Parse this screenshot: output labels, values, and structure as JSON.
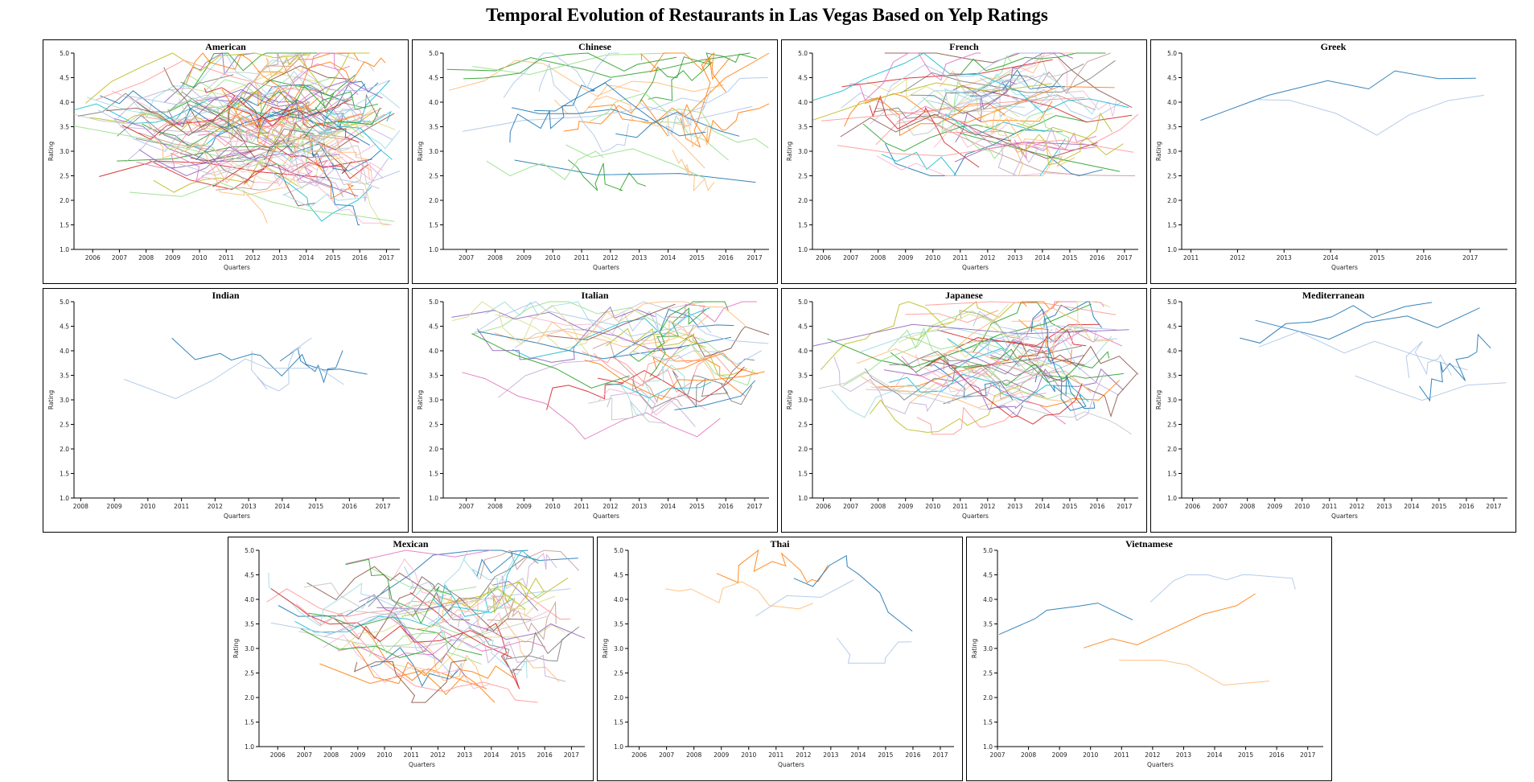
{
  "title": "Temporal Evolution of Restaurants in Las Vegas Based on Yelp Ratings",
  "palette": [
    "#1f77b4",
    "#aec7e8",
    "#ff7f0e",
    "#ffbb78",
    "#2ca02c",
    "#98df8a",
    "#d62728",
    "#ff9896",
    "#9467bd",
    "#c5b0d5",
    "#8c564b",
    "#c49c94",
    "#e377c2",
    "#f7b6d2",
    "#7f7f7f",
    "#c7c7c7",
    "#bcbd22",
    "#dbdb8d",
    "#17becf",
    "#9edae5"
  ],
  "chart_data": [
    {
      "type": "line",
      "title": "American",
      "xlabel": "Quarters",
      "ylabel": "Rating",
      "xlim": [
        2005.3,
        2017.5
      ],
      "ylim": [
        1.0,
        5.0
      ],
      "xticks": [
        "2006",
        "2007",
        "2008",
        "2009",
        "2010",
        "2011",
        "2012",
        "2013",
        "2014",
        "2015",
        "2016",
        "2017"
      ],
      "yticks": [
        "1.0",
        "1.5",
        "2.0",
        "2.5",
        "3.0",
        "3.5",
        "4.0",
        "4.5",
        "5.0"
      ],
      "n_series": 130,
      "y_range_of_series": [
        1.5,
        5.0
      ],
      "colors": "category20"
    },
    {
      "type": "line",
      "title": "Chinese",
      "xlabel": "Quarters",
      "ylabel": "Rating",
      "xlim": [
        2006.2,
        2017.5
      ],
      "ylim": [
        1.0,
        5.0
      ],
      "xticks": [
        "2007",
        "2008",
        "2009",
        "2010",
        "2011",
        "2012",
        "2013",
        "2014",
        "2015",
        "2016",
        "2017"
      ],
      "yticks": [
        "1.0",
        "1.5",
        "2.0",
        "2.5",
        "3.0",
        "3.5",
        "4.0",
        "4.5",
        "5.0"
      ],
      "n_series": 30,
      "y_range_of_series": [
        2.2,
        5.0
      ],
      "colors": [
        "#ffbb78",
        "#ff7f0e",
        "#2ca02c",
        "#aec7e8",
        "#1f77b4",
        "#98df8a"
      ]
    },
    {
      "type": "line",
      "title": "French",
      "xlabel": "Quarters",
      "ylabel": "Rating",
      "xlim": [
        2005.6,
        2017.5
      ],
      "ylim": [
        1.0,
        5.0
      ],
      "xticks": [
        "2006",
        "2007",
        "2008",
        "2009",
        "2010",
        "2011",
        "2012",
        "2013",
        "2014",
        "2015",
        "2016",
        "2017"
      ],
      "yticks": [
        "1.0",
        "1.5",
        "2.0",
        "2.5",
        "3.0",
        "3.5",
        "4.0",
        "4.5",
        "5.0"
      ],
      "n_series": 60,
      "y_range_of_series": [
        2.5,
        5.0
      ],
      "colors": "category20"
    },
    {
      "type": "line",
      "title": "Greek",
      "xlabel": "Quarters",
      "ylabel": "Rating",
      "xlim": [
        2010.8,
        2017.8
      ],
      "ylim": [
        1.0,
        5.0
      ],
      "xticks": [
        "2011",
        "2012",
        "2013",
        "2014",
        "2015",
        "2016",
        "2017"
      ],
      "yticks": [
        "1.0",
        "1.5",
        "2.0",
        "2.5",
        "3.0",
        "3.5",
        "4.0",
        "4.5",
        "5.0"
      ],
      "n_series": 2,
      "y_range_of_series": [
        2.7,
        4.9
      ],
      "colors": [
        "#1f77b4",
        "#aec7e8"
      ]
    },
    {
      "type": "line",
      "title": "Indian",
      "xlabel": "Quarters",
      "ylabel": "Rating",
      "xlim": [
        2007.8,
        2017.5
      ],
      "ylim": [
        1.0,
        5.0
      ],
      "xticks": [
        "2008",
        "2009",
        "2010",
        "2011",
        "2012",
        "2013",
        "2014",
        "2015",
        "2016",
        "2017"
      ],
      "yticks": [
        "1.0",
        "1.5",
        "2.0",
        "2.5",
        "3.0",
        "3.5",
        "4.0",
        "4.5",
        "5.0"
      ],
      "n_series": 4,
      "y_range_of_series": [
        3.0,
        5.0
      ],
      "colors": [
        "#1f77b4",
        "#aec7e8"
      ]
    },
    {
      "type": "line",
      "title": "Italian",
      "xlabel": "Quarters",
      "ylabel": "Rating",
      "xlim": [
        2006.2,
        2017.5
      ],
      "ylim": [
        1.0,
        5.0
      ],
      "xticks": [
        "2007",
        "2008",
        "2009",
        "2010",
        "2011",
        "2012",
        "2013",
        "2014",
        "2015",
        "2016",
        "2017"
      ],
      "yticks": [
        "1.0",
        "1.5",
        "2.0",
        "2.5",
        "3.0",
        "3.5",
        "4.0",
        "4.5",
        "5.0"
      ],
      "n_series": 45,
      "y_range_of_series": [
        2.2,
        5.0
      ],
      "colors": "category20"
    },
    {
      "type": "line",
      "title": "Japanese",
      "xlabel": "Quarters",
      "ylabel": "Rating",
      "xlim": [
        2005.6,
        2017.5
      ],
      "ylim": [
        1.0,
        5.0
      ],
      "xticks": [
        "2006",
        "2007",
        "2008",
        "2009",
        "2010",
        "2011",
        "2012",
        "2013",
        "2014",
        "2015",
        "2016",
        "2017"
      ],
      "yticks": [
        "1.0",
        "1.5",
        "2.0",
        "2.5",
        "3.0",
        "3.5",
        "4.0",
        "4.5",
        "5.0"
      ],
      "n_series": 70,
      "y_range_of_series": [
        2.3,
        5.0
      ],
      "colors": "category20"
    },
    {
      "type": "line",
      "title": "Mediterranean",
      "xlabel": "Quarters",
      "ylabel": "Rating",
      "xlim": [
        2005.6,
        2017.5
      ],
      "ylim": [
        1.0,
        5.0
      ],
      "xticks": [
        "2006",
        "2007",
        "2008",
        "2009",
        "2010",
        "2011",
        "2012",
        "2013",
        "2014",
        "2015",
        "2016",
        "2017"
      ],
      "yticks": [
        "1.0",
        "1.5",
        "2.0",
        "2.5",
        "3.0",
        "3.5",
        "4.0",
        "4.5",
        "5.0"
      ],
      "n_series": 6,
      "y_range_of_series": [
        2.5,
        5.0
      ],
      "colors": [
        "#1f77b4",
        "#aec7e8"
      ]
    },
    {
      "type": "line",
      "title": "Mexican",
      "xlabel": "Quarters",
      "ylabel": "Rating",
      "xlim": [
        2005.3,
        2017.5
      ],
      "ylim": [
        1.0,
        5.0
      ],
      "xticks": [
        "2006",
        "2007",
        "2008",
        "2009",
        "2010",
        "2011",
        "2012",
        "2013",
        "2014",
        "2015",
        "2016",
        "2017"
      ],
      "yticks": [
        "1.0",
        "1.5",
        "2.0",
        "2.5",
        "3.0",
        "3.5",
        "4.0",
        "4.5",
        "5.0"
      ],
      "n_series": 60,
      "y_range_of_series": [
        1.9,
        5.0
      ],
      "colors": "category20"
    },
    {
      "type": "line",
      "title": "Thai",
      "xlabel": "Quarters",
      "ylabel": "Rating",
      "xlim": [
        2005.6,
        2017.5
      ],
      "ylim": [
        1.0,
        5.0
      ],
      "xticks": [
        "2006",
        "2007",
        "2008",
        "2009",
        "2010",
        "2011",
        "2012",
        "2013",
        "2014",
        "2015",
        "2016",
        "2017"
      ],
      "yticks": [
        "1.0",
        "1.5",
        "2.0",
        "2.5",
        "3.0",
        "3.5",
        "4.0",
        "4.5",
        "5.0"
      ],
      "n_series": 5,
      "y_range_of_series": [
        2.7,
        5.0
      ],
      "colors": [
        "#aec7e8",
        "#ff7f0e",
        "#1f77b4",
        "#ffbb78"
      ]
    },
    {
      "type": "line",
      "title": "Vietnamese",
      "xlabel": "Quarters",
      "ylabel": "Rating",
      "xlim": [
        2007.0,
        2017.5
      ],
      "ylim": [
        1.0,
        5.0
      ],
      "xticks": [
        "2007",
        "2008",
        "2009",
        "2010",
        "2011",
        "2012",
        "2013",
        "2014",
        "2015",
        "2016",
        "2017"
      ],
      "yticks": [
        "1.0",
        "1.5",
        "2.0",
        "2.5",
        "3.0",
        "3.5",
        "4.0",
        "4.5",
        "5.0"
      ],
      "n_series": 4,
      "y_range_of_series": [
        2.0,
        4.5
      ],
      "colors": [
        "#aec7e8",
        "#ff7f0e",
        "#1f77b4",
        "#ffbb78"
      ]
    }
  ]
}
